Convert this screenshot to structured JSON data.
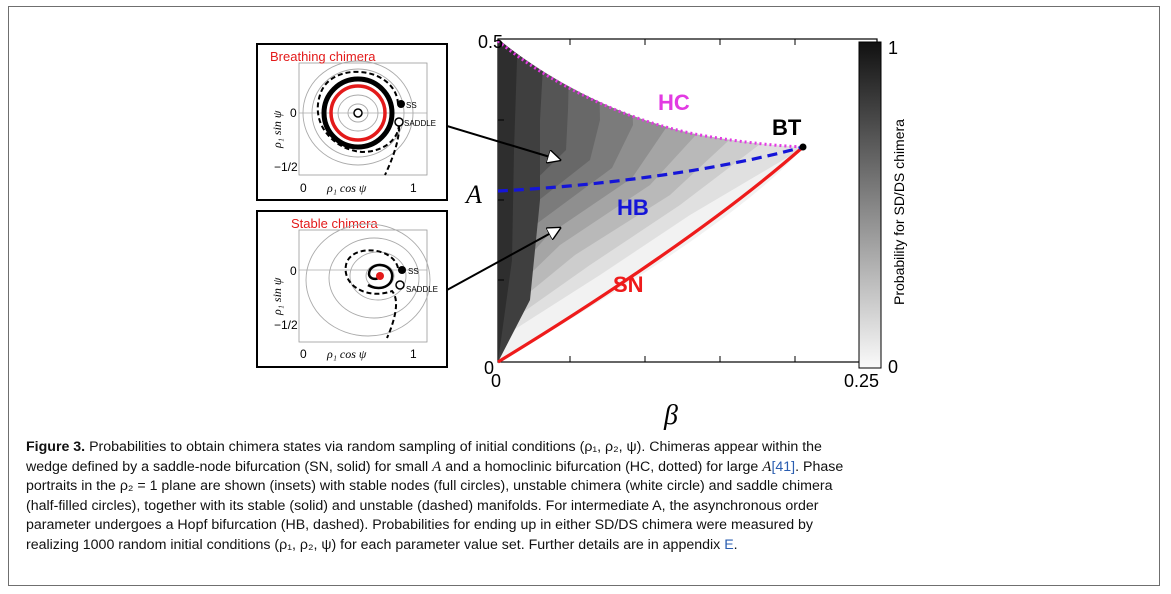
{
  "figure": {
    "inset_top": {
      "title": "Breathing chimera",
      "y_label": "ρ₁ sin ψ",
      "x_label": "ρ₁ cos ψ",
      "y_ticks": [
        "0",
        "−1/2"
      ],
      "x_ticks": [
        "0",
        "1"
      ],
      "annotations": [
        "SS",
        "SADDLE"
      ]
    },
    "inset_bottom": {
      "title": "Stable chimera",
      "y_label": "ρ₁ sin ψ",
      "x_label": "ρ₁ cos ψ",
      "y_ticks": [
        "0",
        "−1/2"
      ],
      "x_ticks": [
        "0",
        "1"
      ],
      "annotations": [
        "SS",
        "SADDLE"
      ]
    },
    "colorbar": {
      "label": "Probability for SD/DS chimera",
      "ticks": [
        "1",
        "0"
      ]
    }
  },
  "chart_data": {
    "type": "heatmap",
    "xlabel": "β",
    "ylabel": "A",
    "xlim": [
      0,
      0.25
    ],
    "ylim": [
      0,
      0.5
    ],
    "x_tick_labels": [
      "0",
      "0.25"
    ],
    "y_tick_labels": [
      "0.5",
      "0"
    ],
    "curve_labels": [
      "HC",
      "HB",
      "SN",
      "BT"
    ],
    "bt_point": {
      "beta": 0.22,
      "A": 0.36
    },
    "colors": {
      "HC": "#e23ae2",
      "HB": "#1515d8",
      "SN": "#ee1b1b"
    }
  },
  "caption": {
    "label": "Figure 3.",
    "line1": " Probabilities to obtain chimera states via random sampling of initial conditions (ρ₁, ρ₂, ψ). Chimeras appear within the",
    "line2a": "wedge defined by a saddle-node bifurcation (SN, solid) for small ",
    "A1": "A",
    "line2b": " and a homoclinic bifurcation (HC, dotted) for large ",
    "A2": "A",
    "ref1": "[41]",
    "line2c": ". Phase",
    "line3": "portraits in the ρ₂ = 1 plane are shown (insets) with stable nodes (full circles), unstable chimera (white circle) and saddle chimera",
    "line4": "(half-filled circles), together with its stable (solid) and unstable (dashed) manifolds. For intermediate A, the asynchronous order",
    "line5": "parameter undergoes a Hopf bifurcation (HB, dashed). Probabilities for ending up in either SD/DS chimera were measured by",
    "line6a": "realizing 1000 random initial conditions (ρ₁, ρ₂, ψ) for each parameter value set. Further details are in appendix ",
    "ref2": "E",
    "line6b": "."
  }
}
